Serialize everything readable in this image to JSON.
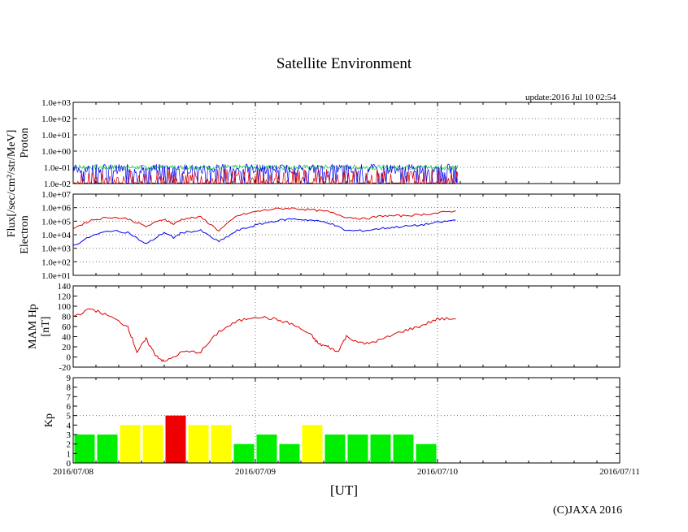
{
  "page": {
    "title": "Satellite Environment",
    "update": "update:2016 Jul 10 02:54",
    "copyright": "(C)JAXA 2016",
    "x_axis_label": "[UT]"
  },
  "chart_data": [
    {
      "type": "line",
      "name": "proton",
      "ylabel": "Proton",
      "yscale": "log",
      "ylim": [
        0.01,
        1000
      ],
      "yticks": [
        "1.0e-02",
        "1.0e-01",
        "1.0e+00",
        "1.0e+01",
        "1.0e+02",
        "1.0e+03"
      ],
      "xlim": [
        "2016/07/08",
        "2016/07/11"
      ],
      "data_end_day": 2.11,
      "series": [
        {
          "name": "green",
          "color": "#00cc33",
          "approx_level": 0.1
        },
        {
          "name": "blue",
          "color": "#0000ee",
          "approx_level": 0.08
        },
        {
          "name": "red",
          "color": "#dd0000",
          "approx_level": 0.012
        }
      ]
    },
    {
      "type": "line",
      "name": "electron",
      "ylabel": "Electron",
      "shared_ylabel": "Flux[/sec/cm²/str/MeV]",
      "yscale": "log",
      "ylim": [
        10,
        10000000
      ],
      "yticks": [
        "1.0e+01",
        "1.0e+02",
        "1.0e+03",
        "1.0e+04",
        "1.0e+05",
        "1.0e+06",
        "1.0e+07"
      ],
      "x": [
        0,
        0.1,
        0.2,
        0.3,
        0.4,
        0.5,
        0.55,
        0.6,
        0.7,
        0.8,
        0.9,
        1.0,
        1.1,
        1.2,
        1.3,
        1.4,
        1.5,
        1.6,
        1.7,
        1.8,
        1.9,
        2.0,
        2.1
      ],
      "series": [
        {
          "name": "red",
          "color": "#dd0000",
          "values": [
            30000,
            120000,
            200000,
            150000,
            40000,
            150000,
            60000,
            150000,
            200000,
            20000,
            250000,
            500000,
            800000,
            900000,
            700000,
            500000,
            200000,
            150000,
            250000,
            250000,
            300000,
            400000,
            600000
          ]
        },
        {
          "name": "blue",
          "color": "#0000ee",
          "values": [
            1500,
            8000,
            20000,
            15000,
            2000,
            15000,
            6000,
            15000,
            20000,
            3000,
            20000,
            50000,
            100000,
            150000,
            120000,
            80000,
            20000,
            20000,
            30000,
            40000,
            50000,
            80000,
            120000
          ]
        }
      ]
    },
    {
      "type": "line",
      "name": "mam_hp",
      "ylabel": "MAM Hp",
      "ylabel2": "[nT]",
      "ylim": [
        -20,
        140
      ],
      "yticks": [
        "-20",
        "0",
        "20",
        "40",
        "60",
        "80",
        "100",
        "120",
        "140"
      ],
      "x": [
        0,
        0.1,
        0.2,
        0.3,
        0.35,
        0.4,
        0.45,
        0.5,
        0.6,
        0.7,
        0.8,
        0.9,
        1.0,
        1.1,
        1.2,
        1.3,
        1.35,
        1.4,
        1.45,
        1.5,
        1.6,
        1.7,
        1.8,
        1.9,
        2.0,
        2.1
      ],
      "series": [
        {
          "name": "hp",
          "color": "#dd0000",
          "values": [
            80,
            95,
            80,
            60,
            10,
            35,
            5,
            -10,
            10,
            10,
            50,
            70,
            80,
            75,
            65,
            45,
            25,
            20,
            10,
            40,
            25,
            35,
            50,
            60,
            75,
            75
          ]
        }
      ]
    },
    {
      "type": "bar",
      "name": "kp",
      "ylabel": "Kp",
      "ylim": [
        0,
        9
      ],
      "yticks": [
        "0",
        "1",
        "2",
        "3",
        "4",
        "5",
        "6",
        "7",
        "8",
        "9"
      ],
      "bin_width_hours": 3,
      "values": [
        3,
        3,
        4,
        4,
        5,
        4,
        4,
        2,
        3,
        2,
        4,
        3,
        3,
        3,
        3,
        2
      ],
      "colors": [
        "#00ee00",
        "#00ee00",
        "#ffff00",
        "#ffff00",
        "#ee0000",
        "#ffff00",
        "#ffff00",
        "#00ee00",
        "#00ee00",
        "#00ee00",
        "#ffff00",
        "#00ee00",
        "#00ee00",
        "#00ee00",
        "#00ee00",
        "#00ee00"
      ],
      "xticks": [
        "2016/07/08",
        "2016/07/09",
        "2016/07/10",
        "2016/07/11"
      ]
    }
  ]
}
